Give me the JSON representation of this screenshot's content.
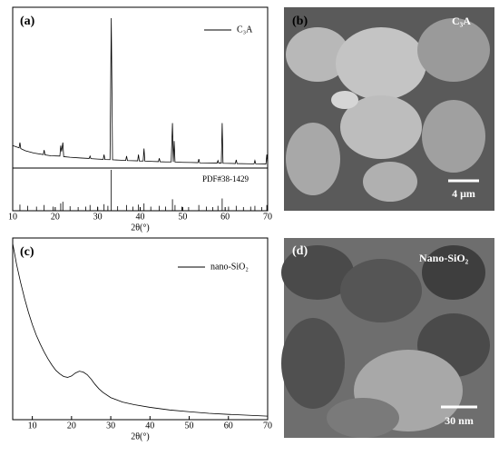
{
  "chart_data": [
    {
      "type": "line",
      "panel": "(a)",
      "x_label": "2θ(°)",
      "xlim": [
        10,
        70
      ],
      "xticks": [
        10,
        20,
        30,
        40,
        50,
        60,
        70
      ],
      "ylim": [
        0,
        100
      ],
      "color": "#000000",
      "series": [
        {
          "name": "C₃A",
          "x": [
            10,
            11.5,
            11.7,
            11.9,
            13,
            15,
            17.2,
            17.4,
            17.6,
            19,
            21.1,
            21.3,
            21.5,
            21.8,
            22.0,
            23.5,
            26,
            28,
            28.2,
            28.4,
            30,
            31.3,
            31.5,
            31.7,
            32.9,
            33.2,
            33.5,
            35,
            36.6,
            36.8,
            37.0,
            38,
            39.4,
            39.6,
            39.8,
            40.7,
            40.9,
            41.1,
            43,
            44.3,
            44.5,
            44.7,
            46,
            47.3,
            47.6,
            47.8,
            48.0,
            48.2,
            50,
            52,
            53.6,
            53.8,
            54.0,
            56,
            58.1,
            58.3,
            58.5,
            59.1,
            59.3,
            59.5,
            61,
            62.4,
            62.6,
            62.8,
            65,
            66.8,
            67.0,
            67.2,
            69.6,
            69.8,
            70
          ],
          "values": [
            15,
            13.5,
            17,
            13,
            11.5,
            10,
            9,
            12,
            8.8,
            8.2,
            8,
            15,
            11,
            17,
            7.6,
            7.2,
            6.7,
            6.4,
            8,
            6.3,
            6,
            5.8,
            9,
            5.7,
            5.6,
            100,
            5.5,
            5.3,
            5.1,
            8,
            5,
            4.9,
            4.8,
            9,
            4.7,
            4.7,
            13,
            4.6,
            4.4,
            4.3,
            6.5,
            4.2,
            4.1,
            4.1,
            30,
            4.1,
            18,
            4,
            3.8,
            3.7,
            3.6,
            6,
            3.5,
            3.4,
            3.3,
            5,
            3.3,
            3.3,
            30,
            3.2,
            3.1,
            3,
            5.5,
            3,
            2.9,
            2.8,
            5,
            2.8,
            2.7,
            9,
            3
          ]
        }
      ],
      "reference": {
        "name": "PDF#38-1429",
        "x": [
          11.7,
          13.5,
          15.6,
          17.4,
          19.5,
          21.3,
          21.8,
          23.5,
          25.4,
          27.2,
          28.2,
          30,
          31.5,
          32.4,
          33.2,
          34.7,
          36.8,
          38.3,
          39.6,
          40.9,
          42.5,
          44.5,
          46,
          47.6,
          48.2,
          49.8,
          51.4,
          53.8,
          55.6,
          57.1,
          58.3,
          59.3,
          60.8,
          62.6,
          64.3,
          66,
          67,
          68.6,
          69.8
        ],
        "values": [
          15,
          12,
          10,
          14,
          10,
          18,
          22,
          11,
          9,
          10,
          14,
          10,
          16,
          12,
          100,
          11,
          14,
          10,
          15,
          18,
          10,
          12,
          10,
          28,
          14,
          10,
          9,
          14,
          10,
          9,
          12,
          30,
          10,
          12,
          9,
          10,
          12,
          9,
          14
        ]
      }
    },
    {
      "type": "line",
      "panel": "(c)",
      "x_label": "2θ(°)",
      "xlim": [
        5,
        70
      ],
      "xticks": [
        10,
        20,
        30,
        40,
        50,
        60,
        70
      ],
      "ylim": [
        0,
        100
      ],
      "color": "#000000",
      "series": [
        {
          "name": "nano-SiO₂",
          "x": [
            5,
            6,
            7,
            8,
            9,
            10,
            11,
            12,
            13,
            14,
            15,
            16,
            17,
            18,
            19,
            20,
            21,
            22,
            23,
            24,
            25,
            26,
            27,
            28,
            30,
            33,
            36,
            40,
            45,
            50,
            55,
            60,
            65,
            70
          ],
          "values": [
            100,
            88,
            78,
            69,
            61,
            54,
            48,
            43,
            38.5,
            34.5,
            31,
            28,
            26,
            24.5,
            24,
            24.8,
            26.5,
            27.5,
            27,
            25.5,
            23,
            20,
            17.5,
            15.5,
            12.5,
            10,
            8.5,
            7,
            5.5,
            4.5,
            3.6,
            3,
            2.5,
            2
          ]
        }
      ]
    }
  ],
  "images": [
    {
      "panel": "(b)",
      "label": "C₃A",
      "scale": "4 μm"
    },
    {
      "panel": "(d)",
      "label": "Nano-SiO₂",
      "scale": "30 nm"
    }
  ]
}
